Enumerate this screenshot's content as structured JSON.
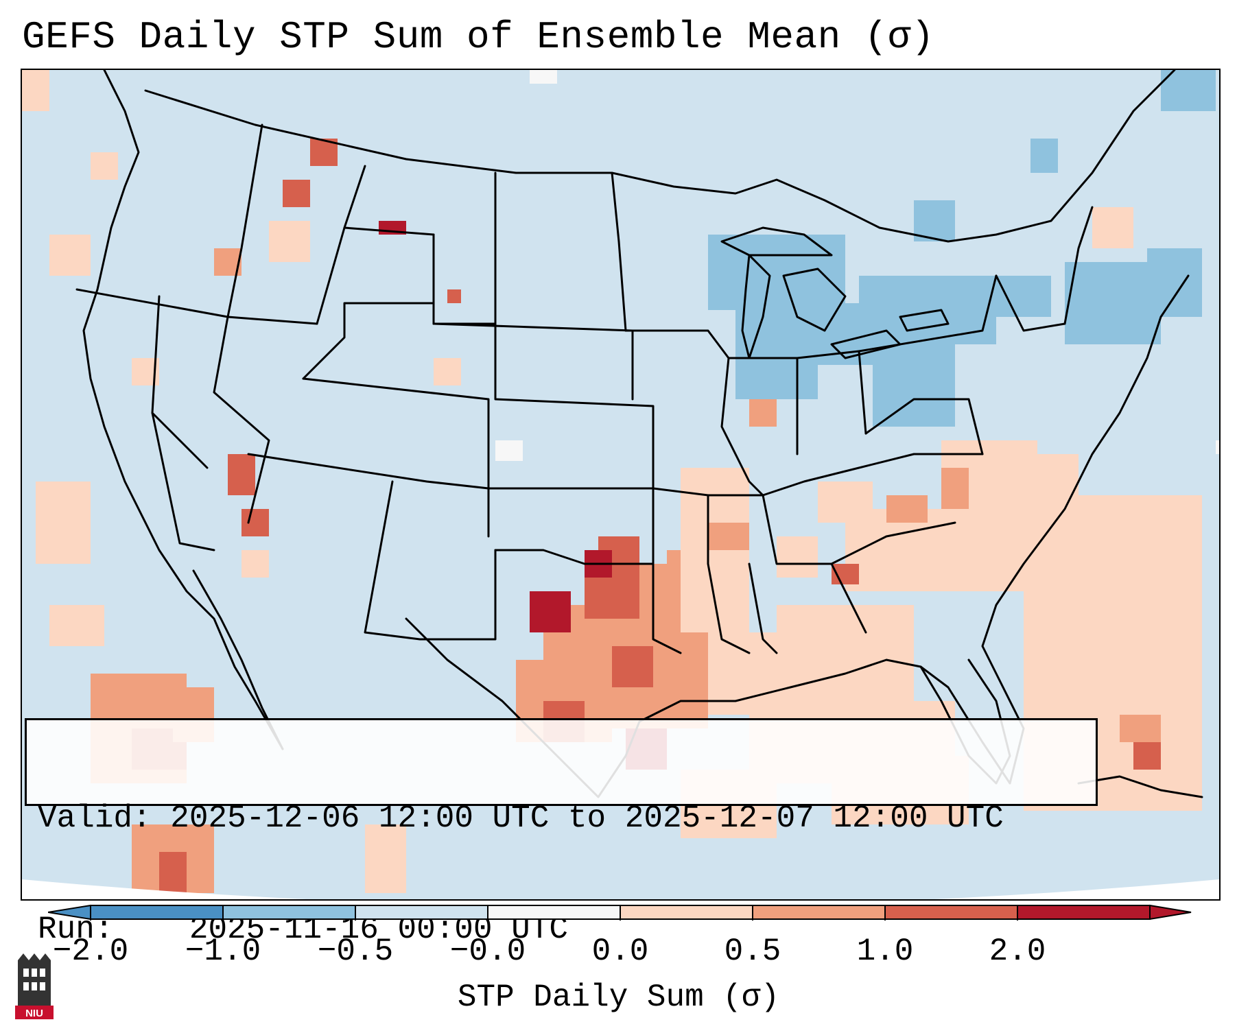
{
  "title": "GEFS Daily STP Sum of Ensemble Mean (σ)",
  "info": {
    "valid_label": "Valid:",
    "valid_value": "2025-12-06 12:00 UTC to 2025-12-07 12:00 UTC",
    "run_label": "Run:",
    "run_value": "2025-11-16 00:00 UTC"
  },
  "colorbar": {
    "label": "STP Daily Sum (σ)",
    "ticks": [
      "−2.0",
      "−1.0",
      "−0.5",
      "−0.0",
      "0.0",
      "0.5",
      "1.0",
      "2.0"
    ],
    "bin_colors": [
      "#4a90c4",
      "#8fc2de",
      "#d0e3ef",
      "#f7f7f7",
      "#fcd7c2",
      "#f0a07e",
      "#d6604d",
      "#b2182b"
    ]
  },
  "map": {
    "background_color": "#d0e3ef",
    "notable_regions": [
      {
        "name": "Texas",
        "level": "0.5 to 2.0"
      },
      {
        "name": "Great Lakes",
        "level": "-1.0 to -0.5"
      },
      {
        "name": "Southeast",
        "level": "0.0 to 0.5"
      },
      {
        "name": "Northeast",
        "level": "-1.0 to -0.5"
      }
    ]
  },
  "logo": {
    "text": "NIU"
  }
}
